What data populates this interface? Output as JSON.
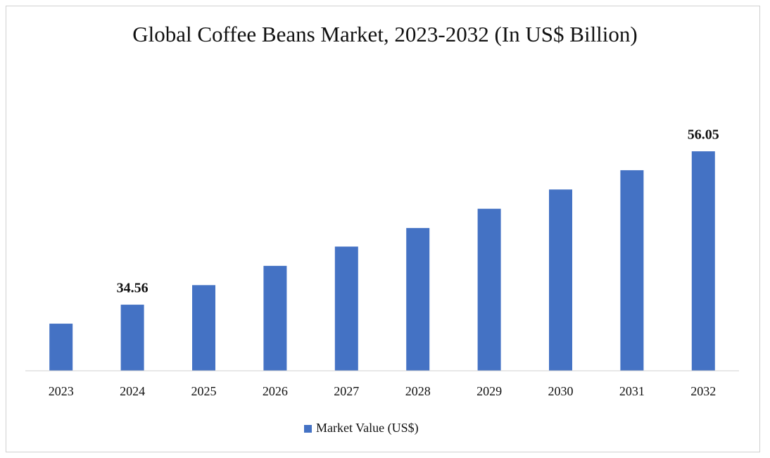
{
  "chart_data": {
    "type": "bar",
    "title": "Global Coffee Beans Market, 2023-2032 (In US$ Billion)",
    "categories": [
      "2023",
      "2024",
      "2025",
      "2026",
      "2027",
      "2028",
      "2029",
      "2030",
      "2031",
      "2032"
    ],
    "series": [
      {
        "name": "Market Value (US$)",
        "color": "#4472c4",
        "values": [
          31.9,
          34.56,
          37.3,
          40.0,
          42.7,
          45.3,
          48.0,
          50.7,
          53.4,
          56.05
        ],
        "value_labels": [
          null,
          "34.56",
          null,
          null,
          null,
          null,
          null,
          null,
          null,
          "56.05"
        ]
      }
    ],
    "ylim": [
      25.3,
      60
    ],
    "legend": "bottom"
  }
}
